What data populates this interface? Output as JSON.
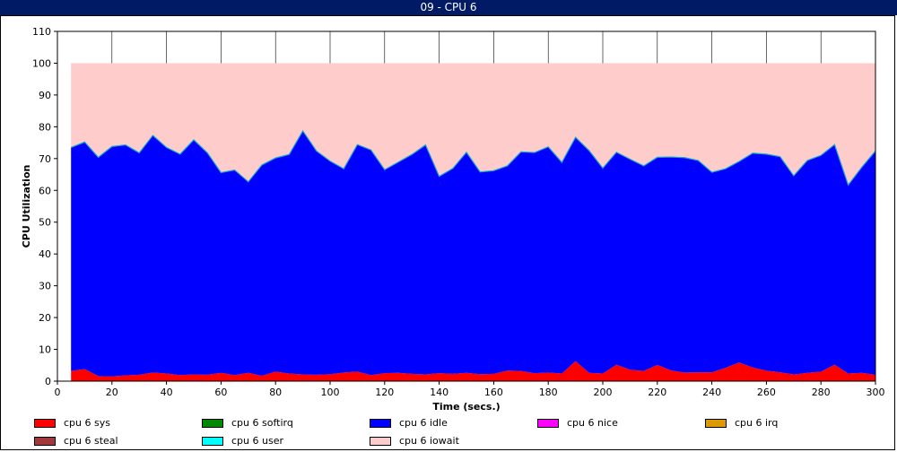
{
  "window": {
    "title": "09 - CPU 6"
  },
  "chart_data": {
    "type": "area",
    "title": "09 - CPU 6",
    "xlabel": "Time (secs.)",
    "ylabel": "CPU Utilization",
    "xlim": [
      0,
      300
    ],
    "ylim": [
      0,
      110
    ],
    "xticks": [
      0,
      20,
      40,
      60,
      80,
      100,
      120,
      140,
      160,
      180,
      200,
      220,
      240,
      260,
      280,
      300
    ],
    "yticks": [
      0,
      10,
      20,
      30,
      40,
      50,
      60,
      70,
      80,
      90,
      100,
      110
    ],
    "grid": "vertical",
    "legend_position": "bottom",
    "x": [
      5,
      10,
      15,
      20,
      25,
      30,
      35,
      40,
      45,
      50,
      55,
      60,
      65,
      70,
      75,
      80,
      85,
      90,
      95,
      100,
      105,
      110,
      115,
      120,
      125,
      130,
      135,
      140,
      145,
      150,
      155,
      160,
      165,
      170,
      175,
      180,
      185,
      190,
      195,
      200,
      205,
      210,
      215,
      220,
      225,
      230,
      235,
      240,
      245,
      250,
      255,
      260,
      265,
      270,
      275,
      280,
      285,
      290,
      295,
      300
    ],
    "series": [
      {
        "name": "cpu 6 sys",
        "color": "#ff0000",
        "stacked": true,
        "values": [
          3.2,
          3.8,
          1.6,
          1.5,
          1.8,
          2.0,
          2.7,
          2.4,
          1.9,
          2.1,
          2.0,
          2.6,
          1.9,
          2.6,
          1.7,
          3.0,
          2.4,
          2.1,
          2.0,
          2.2,
          2.7,
          3.0,
          1.9,
          2.5,
          2.6,
          2.3,
          2.1,
          2.5,
          2.3,
          2.6,
          2.2,
          2.3,
          3.3,
          3.2,
          2.5,
          2.7,
          2.4,
          6.3,
          2.6,
          2.4,
          5.2,
          3.6,
          3.2,
          5.1,
          3.4,
          2.7,
          2.8,
          2.8,
          4.2,
          5.9,
          4.3,
          3.3,
          2.8,
          2.1,
          2.6,
          3.0,
          5.2,
          2.4,
          2.6,
          2.0
        ]
      },
      {
        "name": "cpu 6 softirq",
        "color": "#008800",
        "stacked": true,
        "values": [
          0,
          0,
          0,
          0,
          0,
          0,
          0,
          0,
          0,
          0,
          0,
          0,
          0,
          0,
          0,
          0,
          0,
          0,
          0,
          0,
          0,
          0,
          0,
          0,
          0,
          0,
          0,
          0,
          0,
          0,
          0,
          0,
          0,
          0,
          0,
          0,
          0,
          0,
          0,
          0,
          0,
          0,
          0,
          0,
          0,
          0,
          0,
          0,
          0,
          0,
          0,
          0,
          0,
          0,
          0,
          0,
          0,
          0,
          0,
          0
        ]
      },
      {
        "name": "cpu 6 idle",
        "color": "#0000ff",
        "stacked": true,
        "values": [
          70.3,
          71.4,
          68.8,
          72.3,
          72.5,
          69.8,
          74.6,
          71.1,
          69.5,
          73.8,
          69.8,
          63.0,
          64.5,
          60.1,
          66.3,
          67.2,
          68.9,
          76.6,
          70.4,
          67.0,
          64.1,
          71.4,
          70.8,
          64.0,
          66.3,
          69.0,
          72.2,
          61.9,
          64.6,
          69.4,
          63.6,
          63.9,
          64.4,
          68.9,
          69.4,
          71.0,
          66.4,
          70.4,
          69.9,
          64.6,
          66.8,
          66.2,
          64.5,
          65.3,
          67.1,
          67.6,
          66.6,
          62.9,
          62.6,
          63.2,
          67.4,
          68.1,
          67.8,
          62.5,
          66.8,
          68.0,
          69.2,
          59.3,
          64.7,
          70.4
        ]
      },
      {
        "name": "cpu 6 nice",
        "color": "#ff00ff",
        "stacked": true,
        "values": [
          0,
          0,
          0,
          0,
          0,
          0,
          0,
          0,
          0,
          0,
          0,
          0,
          0,
          0,
          0,
          0,
          0,
          0,
          0,
          0,
          0,
          0,
          0,
          0,
          0,
          0,
          0,
          0,
          0,
          0,
          0,
          0,
          0,
          0,
          0,
          0,
          0,
          0,
          0,
          0,
          0,
          0,
          0,
          0,
          0,
          0,
          0,
          0,
          0,
          0,
          0,
          0,
          0,
          0,
          0,
          0,
          0,
          0,
          0,
          0
        ]
      },
      {
        "name": "cpu 6 irq",
        "color": "#dd9900",
        "stacked": true,
        "values": [
          0,
          0,
          0,
          0,
          0,
          0,
          0,
          0,
          0,
          0,
          0,
          0,
          0,
          0,
          0,
          0,
          0,
          0,
          0,
          0,
          0,
          0,
          0,
          0,
          0,
          0,
          0,
          0,
          0,
          0,
          0,
          0,
          0,
          0,
          0,
          0,
          0,
          0,
          0,
          0,
          0,
          0,
          0,
          0,
          0,
          0,
          0,
          0,
          0,
          0,
          0,
          0,
          0,
          0,
          0,
          0,
          0,
          0,
          0,
          0
        ]
      },
      {
        "name": "cpu 6 steal",
        "color": "#a0383c",
        "stacked": true,
        "values": [
          0,
          0,
          0,
          0,
          0,
          0,
          0,
          0,
          0,
          0,
          0,
          0,
          0,
          0,
          0,
          0,
          0,
          0,
          0,
          0,
          0,
          0,
          0,
          0,
          0,
          0,
          0,
          0,
          0,
          0,
          0,
          0,
          0,
          0,
          0,
          0,
          0,
          0,
          0,
          0,
          0,
          0,
          0,
          0,
          0,
          0,
          0,
          0,
          0,
          0,
          0,
          0,
          0,
          0,
          0,
          0,
          0,
          0,
          0,
          0
        ]
      },
      {
        "name": "cpu 6 user",
        "color": "#00ffff",
        "stacked": true,
        "values": [
          0,
          0,
          0,
          0,
          0,
          0,
          0,
          0,
          0,
          0,
          0,
          0,
          0,
          0,
          0,
          0,
          0,
          0,
          0,
          0,
          0,
          0,
          0,
          0,
          0,
          0,
          0,
          0,
          0,
          0,
          0,
          0,
          0,
          0,
          0,
          0,
          0,
          0,
          0,
          0,
          0,
          0,
          0,
          0,
          0,
          0,
          0,
          0,
          0,
          0,
          0,
          0,
          0,
          0,
          0,
          0,
          0,
          0,
          0,
          0
        ]
      },
      {
        "name": "cpu 6 iowait",
        "color": "#ffcccc",
        "stacked": true,
        "values": [
          26.5,
          24.8,
          29.6,
          26.2,
          25.7,
          28.2,
          22.7,
          26.5,
          28.6,
          24.1,
          28.2,
          34.4,
          33.6,
          37.3,
          32.0,
          29.8,
          28.7,
          21.3,
          27.6,
          30.8,
          33.2,
          25.6,
          27.3,
          33.5,
          31.1,
          28.7,
          25.7,
          35.6,
          33.1,
          28.0,
          34.2,
          33.8,
          32.3,
          27.9,
          28.1,
          26.3,
          31.2,
          23.3,
          27.5,
          33.0,
          28.0,
          30.2,
          32.3,
          29.6,
          29.5,
          29.7,
          30.6,
          34.3,
          33.2,
          30.9,
          28.3,
          28.6,
          29.4,
          35.4,
          30.6,
          29.0,
          25.6,
          38.3,
          32.7,
          27.6
        ]
      }
    ]
  }
}
